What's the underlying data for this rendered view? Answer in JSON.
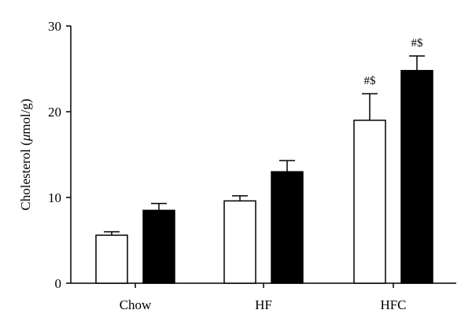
{
  "chart_data": {
    "type": "bar",
    "title": "",
    "xlabel": "",
    "ylabel_prefix": "Cholesterol (",
    "ylabel_mu": "μ",
    "ylabel_suffix": "mol/g)",
    "ylim": [
      0,
      30
    ],
    "yticks": [
      0,
      10,
      20,
      30
    ],
    "categories": [
      "Chow",
      "HF",
      "HFC"
    ],
    "series": [
      {
        "fill": "#ffffff",
        "values": [
          5.6,
          9.6,
          19.0
        ],
        "errors": [
          0.4,
          0.6,
          3.1
        ]
      },
      {
        "fill": "#000000",
        "values": [
          8.5,
          13.0,
          24.8
        ],
        "errors": [
          0.8,
          1.3,
          1.7
        ]
      }
    ],
    "annotations": [
      {
        "category": 2,
        "series": 0,
        "text": "#$"
      },
      {
        "category": 2,
        "series": 1,
        "text": "#$"
      }
    ],
    "grid": false,
    "legend": "none"
  }
}
